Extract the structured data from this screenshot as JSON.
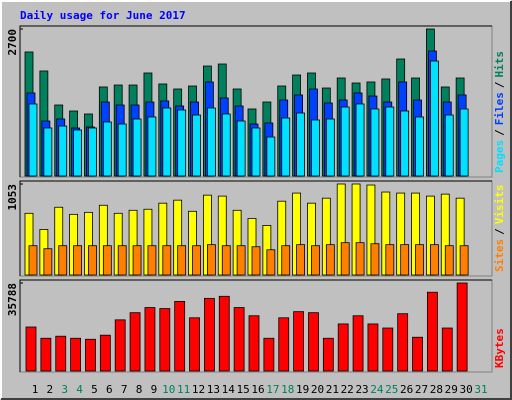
{
  "title": "Daily usage for June 2017",
  "legend_separator": "/",
  "chart_data": [
    {
      "type": "bar",
      "ylim": [
        0,
        2700
      ],
      "yticks": [
        2700
      ],
      "series": [
        {
          "name": "Hits",
          "color": "#00805c",
          "values": [
            2278,
            1929,
            1304,
            1194,
            1139,
            1635,
            1671,
            1671,
            1892,
            1690,
            1598,
            1653,
            2020,
            2057,
            1598,
            1231,
            1359,
            1653,
            1855,
            1892,
            1616,
            1800,
            1708,
            1727,
            1782,
            2149,
            1800,
            2700,
            1635,
            1800,
            null
          ]
        },
        {
          "name": "Files",
          "color": "#0040ff",
          "values": [
            1525,
            1010,
            1047,
            882,
            900,
            1359,
            1304,
            1304,
            1359,
            1378,
            1286,
            1359,
            1727,
            1433,
            1286,
            955,
            974,
            1396,
            1488,
            1598,
            1341,
            1396,
            1525,
            1469,
            1359,
            1727,
            1396,
            2296,
            1359,
            1488,
            null
          ]
        },
        {
          "name": "Pages",
          "color": "#00e0ff",
          "values": [
            1323,
            882,
            918,
            845,
            882,
            992,
            955,
            1047,
            1084,
            1249,
            1212,
            1120,
            1249,
            1139,
            1010,
            882,
            716,
            1065,
            1157,
            1029,
            1047,
            1267,
            1323,
            1231,
            1267,
            1194,
            1084,
            2112,
            1120,
            1231,
            null
          ]
        }
      ]
    },
    {
      "type": "bar",
      "ylim": [
        0,
        1053
      ],
      "yticks": [
        1053
      ],
      "series": [
        {
          "name": "Visits",
          "color": "#ffff00",
          "values": [
            714,
            527,
            784,
            702,
            725,
            807,
            714,
            749,
            761,
            831,
            866,
            737,
            924,
            913,
            749,
            655,
            573,
            854,
            948,
            831,
            889,
            1053,
            1053,
            1041,
            960,
            948,
            948,
            913,
            936,
            889,
            null
          ]
        },
        {
          "name": "Sites",
          "color": "#ff8000",
          "values": [
            339,
            304,
            339,
            339,
            339,
            339,
            339,
            339,
            339,
            339,
            339,
            339,
            351,
            339,
            339,
            327,
            292,
            339,
            351,
            339,
            351,
            374,
            374,
            362,
            351,
            351,
            351,
            351,
            339,
            339,
            null
          ]
        }
      ]
    },
    {
      "type": "bar",
      "ylim": [
        0,
        35788
      ],
      "yticks": [
        35788
      ],
      "categories": [
        "1",
        "2",
        "3",
        "4",
        "5",
        "6",
        "7",
        "8",
        "9",
        "10",
        "11",
        "12",
        "13",
        "14",
        "15",
        "16",
        "17",
        "18",
        "19",
        "20",
        "21",
        "22",
        "23",
        "24",
        "25",
        "26",
        "27",
        "28",
        "29",
        "30",
        "31"
      ],
      "category_colors": [
        "#000000",
        "#000000",
        "#00805c",
        "#00805c",
        "#000000",
        "#000000",
        "#000000",
        "#000000",
        "#000000",
        "#00805c",
        "#00805c",
        "#000000",
        "#000000",
        "#000000",
        "#000000",
        "#000000",
        "#00805c",
        "#00805c",
        "#000000",
        "#000000",
        "#000000",
        "#000000",
        "#000000",
        "#00805c",
        "#00805c",
        "#000000",
        "#000000",
        "#000000",
        "#000000",
        "#000000",
        "#00805c"
      ],
      "series": [
        {
          "name": "KBytes",
          "color": "#ff0000",
          "values": [
            17894,
            13316,
            14149,
            13316,
            12900,
            14565,
            20807,
            23720,
            25800,
            25384,
            28297,
            21639,
            29545,
            30378,
            25800,
            22471,
            13316,
            21639,
            24136,
            23720,
            13316,
            19142,
            22471,
            19142,
            17478,
            23304,
            13732,
            32042,
            17478,
            35788,
            null
          ]
        }
      ]
    }
  ]
}
